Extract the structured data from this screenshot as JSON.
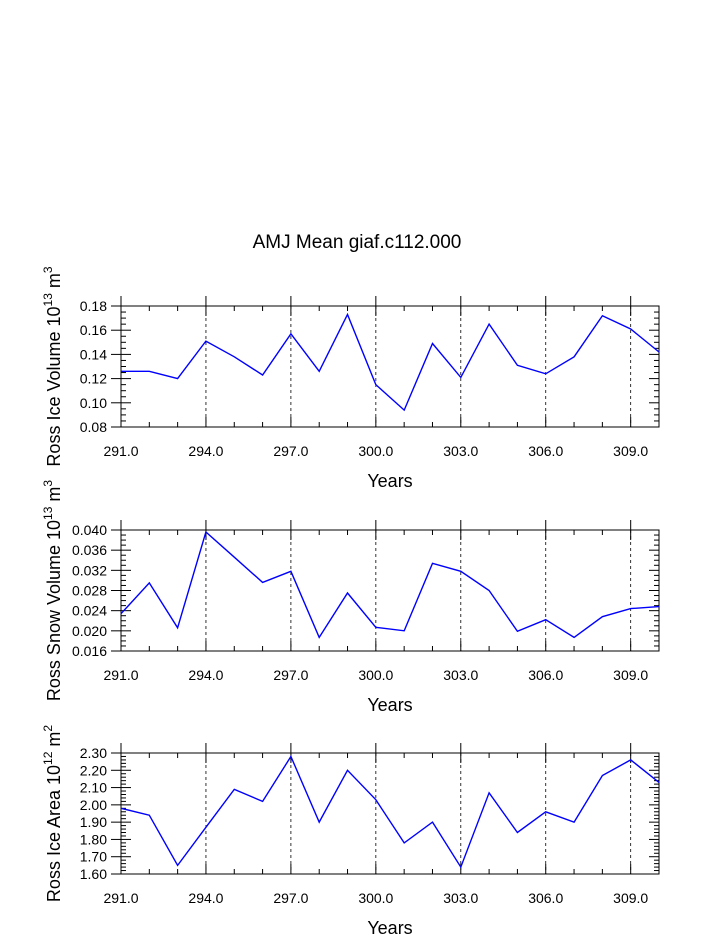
{
  "title": "AMJ Mean giaf.c112.000",
  "chart_data": [
    {
      "type": "line",
      "ylabel_text": "Ross Ice Volume 10",
      "ylabel_exp": "13",
      "ylabel_unit": " m",
      "ylabel_unit_exp": "3",
      "xlabel": "Years",
      "xlim": [
        291,
        310
      ],
      "ylim": [
        0.08,
        0.18
      ],
      "xticks": [
        291,
        294,
        297,
        300,
        303,
        306,
        309
      ],
      "xtick_labels": [
        "291.0",
        "294.0",
        "297.0",
        "300.0",
        "303.0",
        "306.0",
        "309.0"
      ],
      "yticks": [
        0.08,
        0.1,
        0.12,
        0.14,
        0.16,
        0.18
      ],
      "ytick_labels": [
        "0.08",
        "0.10",
        "0.12",
        "0.14",
        "0.16",
        "0.18"
      ],
      "yminor_step": 0.005,
      "line_color": "#0000ff",
      "x": [
        291,
        292,
        293,
        294,
        295,
        296,
        297,
        298,
        299,
        300,
        301,
        302,
        303,
        304,
        305,
        306,
        307,
        308,
        309,
        310
      ],
      "values": [
        0.126,
        0.126,
        0.12,
        0.151,
        0.138,
        0.123,
        0.157,
        0.126,
        0.173,
        0.115,
        0.094,
        0.149,
        0.121,
        0.165,
        0.131,
        0.124,
        0.138,
        0.172,
        0.161,
        0.142
      ]
    },
    {
      "type": "line",
      "ylabel_text": "Ross Snow Volume 10",
      "ylabel_exp": "13",
      "ylabel_unit": " m",
      "ylabel_unit_exp": "3",
      "xlabel": "Years",
      "xlim": [
        291,
        310
      ],
      "ylim": [
        0.016,
        0.04
      ],
      "xticks": [
        291,
        294,
        297,
        300,
        303,
        306,
        309
      ],
      "xtick_labels": [
        "291.0",
        "294.0",
        "297.0",
        "300.0",
        "303.0",
        "306.0",
        "309.0"
      ],
      "yticks": [
        0.016,
        0.02,
        0.024,
        0.028,
        0.032,
        0.036,
        0.04
      ],
      "ytick_labels": [
        "0.016",
        "0.020",
        "0.024",
        "0.028",
        "0.032",
        "0.036",
        "0.040"
      ],
      "yminor_step": 0.001,
      "line_color": "#0000ff",
      "x": [
        291,
        292,
        293,
        294,
        295,
        296,
        297,
        298,
        299,
        300,
        301,
        302,
        303,
        304,
        305,
        306,
        307,
        308,
        309,
        310
      ],
      "values": [
        0.0234,
        0.0295,
        0.0206,
        0.0396,
        0.0346,
        0.0296,
        0.0318,
        0.0187,
        0.0275,
        0.0207,
        0.02,
        0.0334,
        0.0318,
        0.028,
        0.0199,
        0.0222,
        0.0187,
        0.0228,
        0.0244,
        0.0248
      ]
    },
    {
      "type": "line",
      "ylabel_text": "Ross Ice Area 10",
      "ylabel_exp": "12",
      "ylabel_unit": " m",
      "ylabel_unit_exp": "2",
      "xlabel": "Years",
      "xlim": [
        291,
        310
      ],
      "ylim": [
        1.6,
        2.3
      ],
      "xticks": [
        291,
        294,
        297,
        300,
        303,
        306,
        309
      ],
      "xtick_labels": [
        "291.0",
        "294.0",
        "297.0",
        "300.0",
        "303.0",
        "306.0",
        "309.0"
      ],
      "yticks": [
        1.6,
        1.7,
        1.8,
        1.9,
        2.0,
        2.1,
        2.2,
        2.3
      ],
      "ytick_labels": [
        "1.60",
        "1.70",
        "1.80",
        "1.90",
        "2.00",
        "2.10",
        "2.20",
        "2.30"
      ],
      "yminor_step": 0.02,
      "line_color": "#0000ff",
      "x": [
        291,
        292,
        293,
        294,
        295,
        296,
        297,
        298,
        299,
        300,
        301,
        302,
        303,
        304,
        305,
        306,
        307,
        308,
        309,
        310
      ],
      "values": [
        1.98,
        1.94,
        1.65,
        1.87,
        2.09,
        2.02,
        2.28,
        1.9,
        2.2,
        2.03,
        1.78,
        1.9,
        1.64,
        2.07,
        1.84,
        1.96,
        1.9,
        2.17,
        2.26,
        2.13
      ]
    }
  ]
}
